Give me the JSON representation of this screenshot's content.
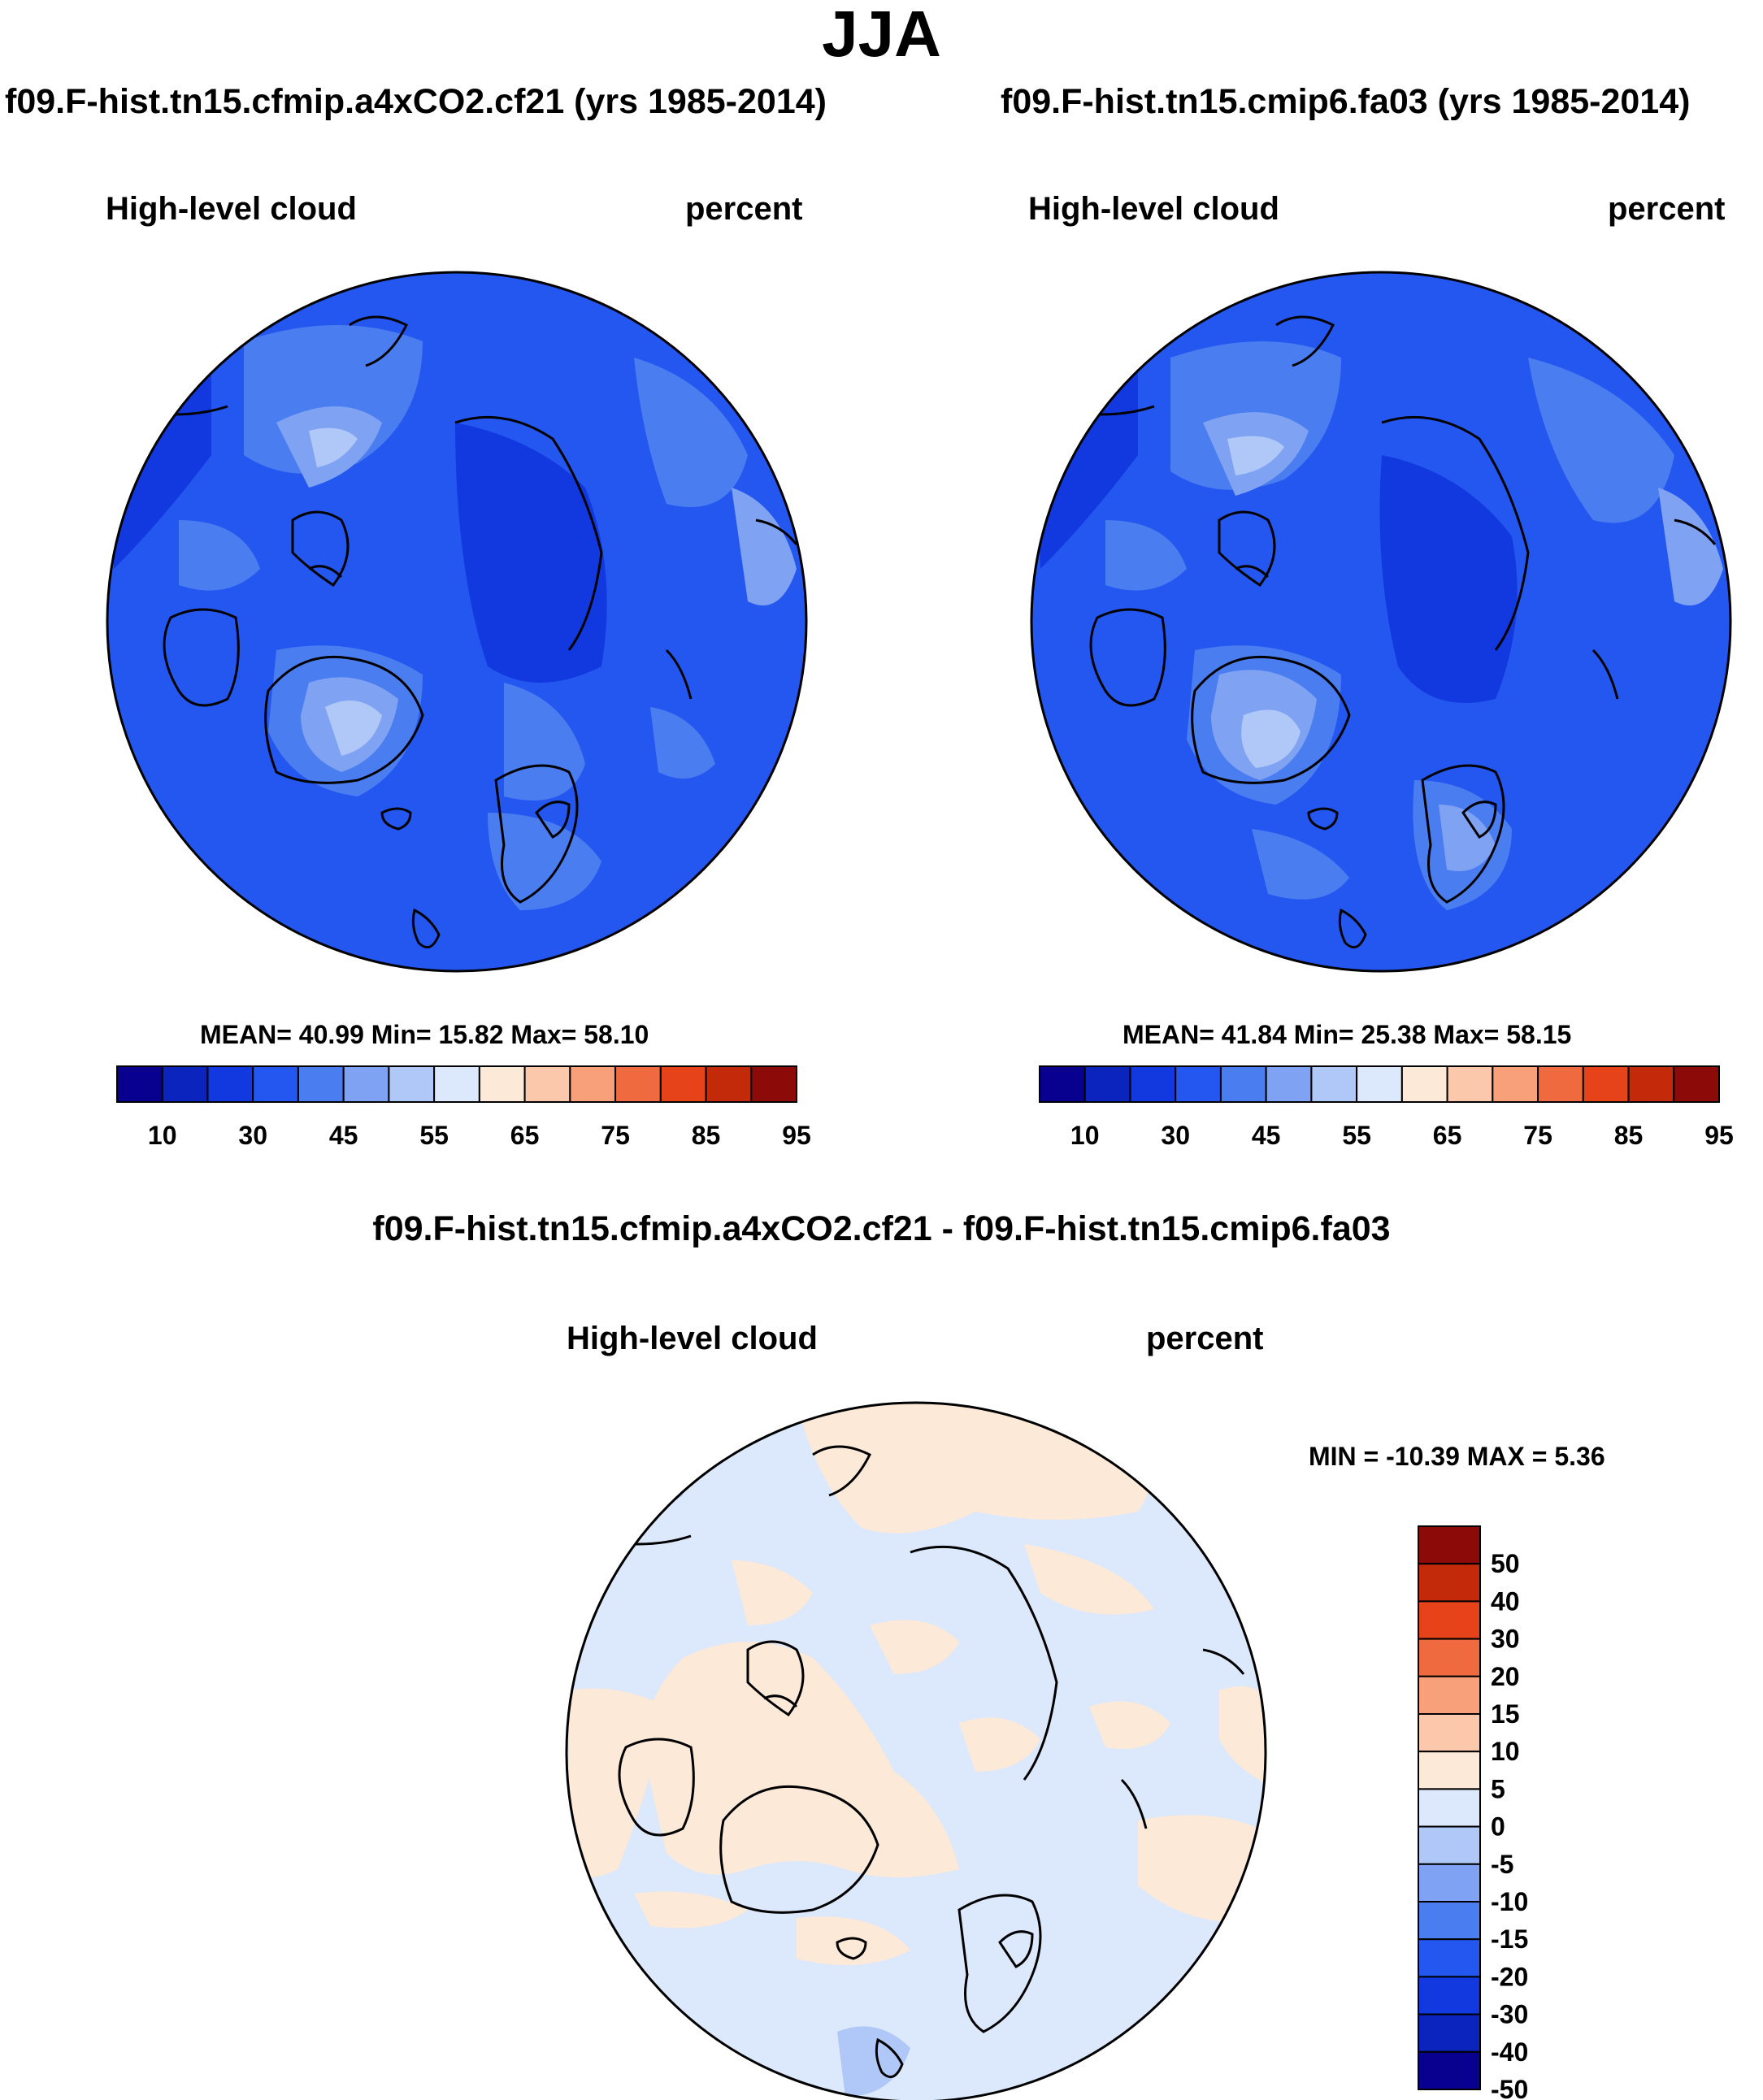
{
  "main_title": "JJA",
  "panels": [
    {
      "run": "f09.F-hist.tn15.cfmip.a4xCO2.cf21 (yrs 1985-2014)",
      "variable": "High-level cloud",
      "units": "percent",
      "stats": "MEAN=  40.99  Min=  15.82  Max=  58.10"
    },
    {
      "run": "f09.F-hist.tn15.cmip6.fa03 (yrs 1985-2014)",
      "variable": "High-level cloud",
      "units": "percent",
      "stats": "MEAN=  41.84  Min=  25.38  Max=  58.15"
    }
  ],
  "difference": {
    "title": "f09.F-hist.tn15.cfmip.a4xCO2.cf21 - f09.F-hist.tn15.cmip6.fa03",
    "variable": "High-level cloud",
    "units": "percent",
    "stats": "MIN = -10.39 MAX =   5.36"
  },
  "colorbar_abs": {
    "labels": [
      "10",
      "30",
      "45",
      "55",
      "65",
      "75",
      "85",
      "95"
    ],
    "colors": [
      "#08008f",
      "#0a24bd",
      "#1239e0",
      "#2457f0",
      "#4a7df0",
      "#7fa3f2",
      "#b0c8f7",
      "#dce8fb",
      "#fde9d8",
      "#fcc8ac",
      "#f8a07a",
      "#f06a3f",
      "#e6431b",
      "#c32a0a",
      "#8c0a08"
    ]
  },
  "colorbar_diff": {
    "labels": [
      "50",
      "40",
      "30",
      "20",
      "15",
      "10",
      "5",
      "0",
      "-5",
      "-10",
      "-15",
      "-20",
      "-30",
      "-40",
      "-50"
    ],
    "colors": [
      "#8c0a08",
      "#c32a0a",
      "#e6431b",
      "#f06a3f",
      "#f8a07a",
      "#fcc8ac",
      "#fde9d8",
      "#dce8fb",
      "#b0c8f7",
      "#7fa3f2",
      "#4a7df0",
      "#2457f0",
      "#1239e0",
      "#0a24bd",
      "#08008f"
    ]
  }
}
